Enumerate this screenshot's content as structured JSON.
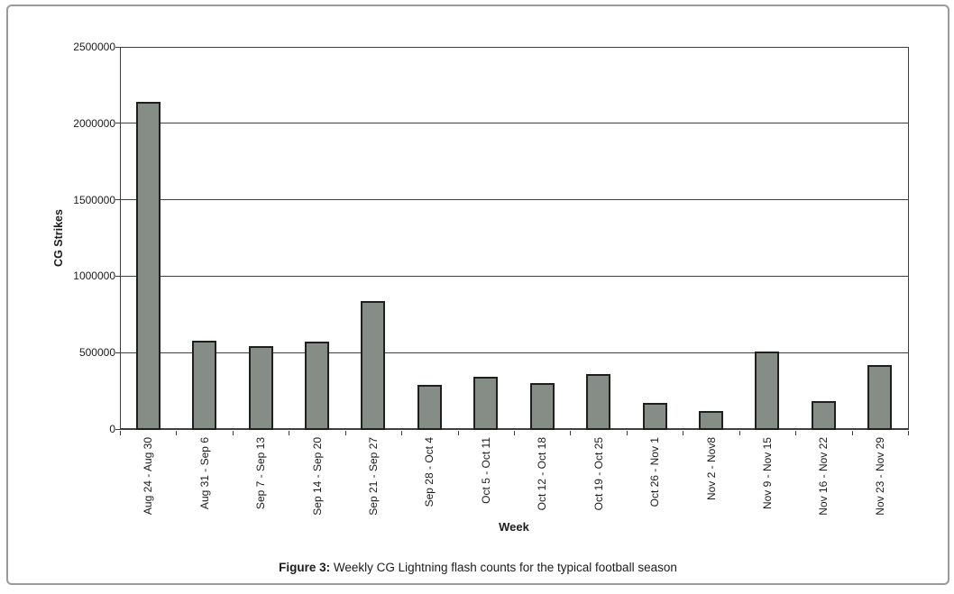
{
  "figure": {
    "caption": {
      "prefix": "Figure 3:",
      "text": " Weekly CG Lightning flash counts for the typical football season"
    }
  },
  "chart_data": {
    "type": "bar",
    "title": "",
    "xlabel": "Week",
    "ylabel": "CG Strikes",
    "ylim": [
      0,
      2500000
    ],
    "yticks": [
      0,
      500000,
      1000000,
      1500000,
      2000000,
      2500000
    ],
    "grid": true,
    "legend_position": "none",
    "categories": [
      "Aug 24 - Aug 30",
      "Aug 31 - Sep 6",
      "Sep 7 - Sep 13",
      "Sep 14 - Sep 20",
      "Sep 21 - Sep 27",
      "Sep 28 - Oct 4",
      "Oct 5 - Oct 11",
      "Oct 12 - Oct 18",
      "Oct 19 - Oct 25",
      "Oct 26 - Nov 1",
      "Nov 2 - Nov8",
      "Nov 9 - Nov 15",
      "Nov 16 - Nov 22",
      "Nov 23 - Nov 29"
    ],
    "values": [
      2140000,
      580000,
      540000,
      570000,
      840000,
      290000,
      340000,
      300000,
      360000,
      170000,
      115000,
      510000,
      180000,
      420000
    ],
    "colors": {
      "bar_fill": "#868d86",
      "bar_border": "#1f1f1f",
      "gridline": "#3f3f3f",
      "axis": "#3f3f3f",
      "text": "#1c1c1c",
      "frame_border": "#9a9a9a"
    }
  }
}
